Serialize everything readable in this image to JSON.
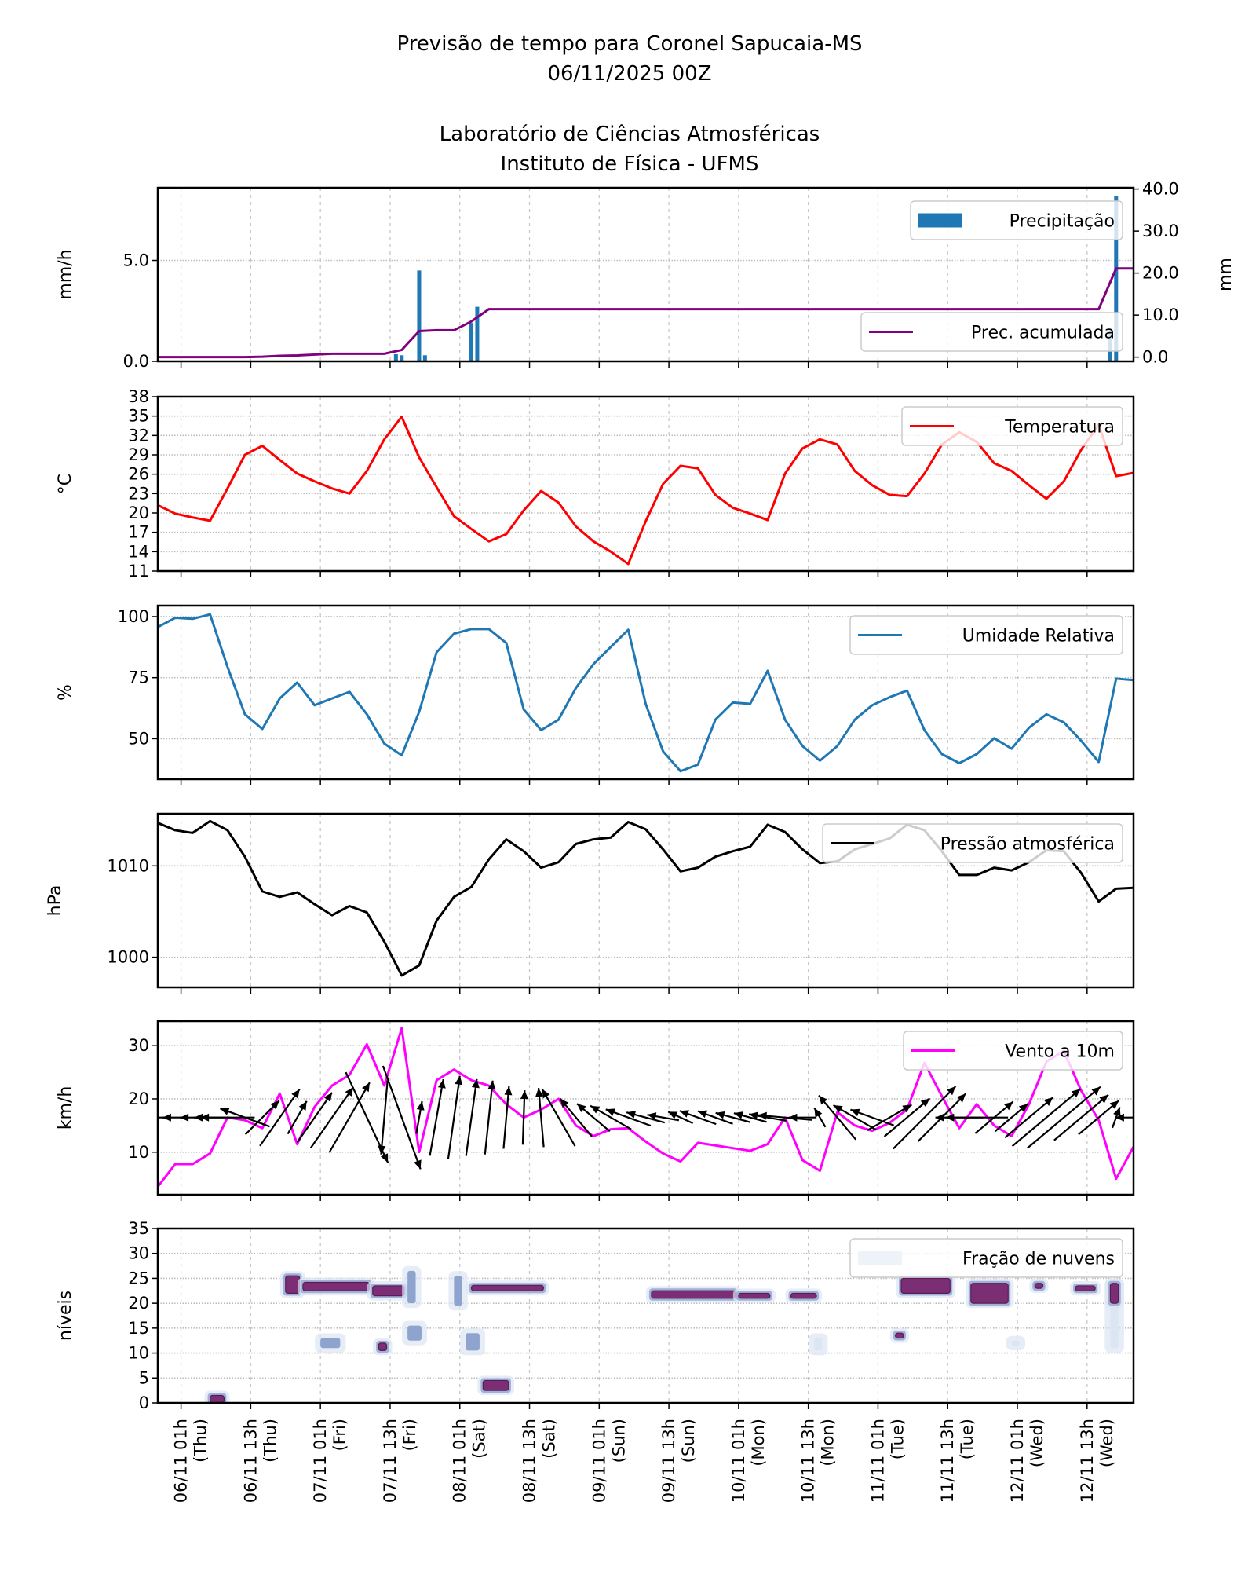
{
  "title": {
    "line1": "Previsão de tempo para Coronel Sapucaia-MS",
    "line2": "06/11/2025 00Z",
    "line3": "Laboratório de Ciências Atmosféricas",
    "line4": "Instituto de Física - UFMS"
  },
  "x_axis": {
    "range": [
      "05/11 21h",
      "12/11 21h"
    ],
    "ticks": [
      {
        "at": "06/11 01h",
        "line1": "06/11 01h",
        "line2": "(Thu)"
      },
      {
        "at": "06/11 13h",
        "line1": "06/11 13h",
        "line2": "(Thu)"
      },
      {
        "at": "07/11 01h",
        "line1": "07/11 01h",
        "line2": "(Fri)"
      },
      {
        "at": "07/11 13h",
        "line1": "07/11 13h",
        "line2": "(Fri)"
      },
      {
        "at": "08/11 01h",
        "line1": "08/11 01h",
        "line2": "(Sat)"
      },
      {
        "at": "08/11 13h",
        "line1": "08/11 13h",
        "line2": "(Sat)"
      },
      {
        "at": "09/11 01h",
        "line1": "09/11 01h",
        "line2": "(Sun)"
      },
      {
        "at": "09/11 13h",
        "line1": "09/11 13h",
        "line2": "(Sun)"
      },
      {
        "at": "10/11 01h",
        "line1": "10/11 01h",
        "line2": "(Mon)"
      },
      {
        "at": "10/11 13h",
        "line1": "10/11 13h",
        "line2": "(Mon)"
      },
      {
        "at": "11/11 01h",
        "line1": "11/11 01h",
        "line2": "(Tue)"
      },
      {
        "at": "11/11 13h",
        "line1": "11/11 13h",
        "line2": "(Tue)"
      },
      {
        "at": "12/11 01h",
        "line1": "12/11 01h",
        "line2": "(Wed)"
      },
      {
        "at": "12/11 13h",
        "line1": "12/11 13h",
        "line2": "(Wed)"
      }
    ]
  },
  "times": [
    "05/11 21h",
    "06/11 00h",
    "06/11 03h",
    "06/11 06h",
    "06/11 09h",
    "06/11 12h",
    "06/11 15h",
    "06/11 18h",
    "06/11 21h",
    "07/11 00h",
    "07/11 03h",
    "07/11 06h",
    "07/11 09h",
    "07/11 12h",
    "07/11 15h",
    "07/11 18h",
    "07/11 21h",
    "08/11 00h",
    "08/11 03h",
    "08/11 06h",
    "08/11 09h",
    "08/11 12h",
    "08/11 15h",
    "08/11 18h",
    "08/11 21h",
    "09/11 00h",
    "09/11 03h",
    "09/11 06h",
    "09/11 09h",
    "09/11 12h",
    "09/11 15h",
    "09/11 18h",
    "09/11 21h",
    "10/11 00h",
    "10/11 03h",
    "10/11 06h",
    "10/11 09h",
    "10/11 12h",
    "10/11 15h",
    "10/11 18h",
    "10/11 21h",
    "11/11 00h",
    "11/11 03h",
    "11/11 06h",
    "11/11 09h",
    "11/11 12h",
    "11/11 15h",
    "11/11 18h",
    "11/11 21h",
    "12/11 00h",
    "12/11 03h",
    "12/11 06h",
    "12/11 09h",
    "12/11 12h",
    "12/11 15h",
    "12/11 18h",
    "12/11 21h"
  ],
  "chart_data": [
    {
      "type": "bar",
      "ylabel": "mm/h",
      "ylabel_right": "mm",
      "ylim": [
        0,
        8.6
      ],
      "ylim_right": [
        -1,
        40.3
      ],
      "yticks": [
        "0.0",
        "5.0"
      ],
      "yticks_right": [
        "0.0",
        "10.0",
        "20.0",
        "30.0",
        "40.0"
      ],
      "grid": true,
      "legend_placement": "upper-right / lower-right",
      "series": [
        {
          "name": "Precipitação",
          "type": "bar",
          "color": "#1f77b4",
          "axis": "left",
          "x": [
            "07/11 14h",
            "07/11 15h",
            "07/11 18h",
            "07/11 19h",
            "08/11 03h",
            "08/11 04h",
            "12/11 17h",
            "12/11 18h"
          ],
          "values": [
            0.35,
            0.3,
            4.5,
            0.3,
            1.9,
            2.7,
            1.5,
            8.2
          ]
        },
        {
          "name": "Prec. acumulada",
          "type": "line",
          "color": "#800080",
          "axis": "right",
          "values": [
            0,
            0,
            0,
            0,
            0,
            0,
            0.1,
            0.3,
            0.4,
            0.6,
            0.8,
            0.8,
            0.8,
            0.8,
            1.7,
            6.2,
            6.4,
            6.4,
            8.5,
            11.4,
            11.4,
            11.4,
            11.4,
            11.4,
            11.4,
            11.4,
            11.4,
            11.4,
            11.4,
            11.4,
            11.4,
            11.4,
            11.4,
            11.4,
            11.4,
            11.4,
            11.4,
            11.4,
            11.4,
            11.4,
            11.4,
            11.4,
            11.4,
            11.4,
            11.4,
            11.4,
            11.4,
            11.4,
            11.4,
            11.4,
            11.4,
            11.4,
            11.4,
            11.4,
            11.4,
            21.1,
            21.1
          ]
        }
      ]
    },
    {
      "type": "line",
      "ylabel": "°C",
      "ylim": [
        11,
        38
      ],
      "yticks": [
        "11",
        "14",
        "17",
        "20",
        "23",
        "26",
        "29",
        "32",
        "35",
        "38"
      ],
      "grid": true,
      "legend_placement": "upper-right",
      "series": [
        {
          "name": "Temperatura",
          "color": "#ff0000",
          "values": [
            21.2,
            19.9,
            19.3,
            18.8,
            23.8,
            29.0,
            30.4,
            28.2,
            26.1,
            24.9,
            23.8,
            23.0,
            26.5,
            31.4,
            34.9,
            28.6,
            24.0,
            19.5,
            17.5,
            15.6,
            16.7,
            20.4,
            23.4,
            21.6,
            17.9,
            15.6,
            14.0,
            12.1,
            18.7,
            24.5,
            27.3,
            26.9,
            22.8,
            20.8,
            19.9,
            18.9,
            26.1,
            30.0,
            31.4,
            30.6,
            26.5,
            24.3,
            22.8,
            22.6,
            26.1,
            30.6,
            32.5,
            31.0,
            27.7,
            26.5,
            24.3,
            22.2,
            24.9,
            29.8,
            33.7,
            25.7,
            26.2
          ]
        }
      ]
    },
    {
      "type": "line",
      "ylabel": "%",
      "ylim": [
        33.4,
        104.5
      ],
      "yticks": [
        "50",
        "75",
        "100"
      ],
      "grid": true,
      "legend_placement": "upper-right",
      "series": [
        {
          "name": "Umidade Relativa",
          "color": "#1f77b4",
          "values": [
            95.7,
            99.5,
            99.1,
            100.9,
            79.4,
            60,
            54,
            66.5,
            73,
            63.7,
            66.5,
            69.2,
            60,
            48,
            43.2,
            61,
            85.4,
            93,
            94.9,
            94.9,
            89.2,
            62,
            53.5,
            57.8,
            70.8,
            80.5,
            87.6,
            94.6,
            64.3,
            44.8,
            36.7,
            39.4,
            57.8,
            64.8,
            64.3,
            77.8,
            57.8,
            47,
            41,
            47,
            57.8,
            63.7,
            67,
            69.7,
            53.5,
            43.7,
            40,
            43.7,
            50.2,
            45.9,
            54.5,
            60,
            56.7,
            49.1,
            40.5,
            74.6,
            74
          ]
        }
      ]
    },
    {
      "type": "line",
      "ylabel": "hPa",
      "ylim": [
        996.7,
        1015.7
      ],
      "yticks": [
        "1000",
        "1010"
      ],
      "grid": true,
      "legend_placement": "upper-right",
      "series": [
        {
          "name": "Pressão atmosférica",
          "color": "#000000",
          "values": [
            1014.7,
            1013.9,
            1013.6,
            1014.9,
            1013.9,
            1011.0,
            1007.2,
            1006.6,
            1007.1,
            1005.8,
            1004.6,
            1005.6,
            1004.9,
            1001.7,
            998.0,
            999.1,
            1004.0,
            1006.6,
            1007.7,
            1010.7,
            1012.9,
            1011.6,
            1009.8,
            1010.4,
            1012.4,
            1012.9,
            1013.1,
            1014.8,
            1014.0,
            1011.8,
            1009.4,
            1009.8,
            1011.0,
            1011.6,
            1012.1,
            1014.5,
            1013.7,
            1011.8,
            1010.3,
            1010.5,
            1011.8,
            1012.4,
            1013.0,
            1014.5,
            1013.9,
            1011.6,
            1009.0,
            1009.0,
            1009.8,
            1009.5,
            1010.4,
            1011.7,
            1011.6,
            1009.2,
            1006.1,
            1007.5,
            1007.6
          ]
        }
      ]
    },
    {
      "type": "line",
      "ylabel": "km/h",
      "ylim": [
        2,
        34.6
      ],
      "yticks": [
        "10",
        "20",
        "30"
      ],
      "grid": true,
      "legend_placement": "upper-right",
      "series": [
        {
          "name": "Vento a 10m",
          "color": "#ff00ff",
          "values": [
            3.5,
            7.75,
            7.75,
            9.75,
            16.5,
            16,
            14.5,
            21,
            11.5,
            18.5,
            22.5,
            24.5,
            30.25,
            22.5,
            33.3,
            10,
            23.5,
            25.5,
            23.5,
            22.5,
            19,
            16.5,
            18,
            20,
            15,
            13,
            14.3,
            14.5,
            12,
            9.75,
            8.25,
            11.75,
            11.25,
            10.75,
            10.25,
            11.5,
            16.5,
            8.5,
            6.5,
            17.5,
            15,
            14,
            15.5,
            18,
            26.75,
            20.5,
            14.5,
            19,
            15,
            13,
            19,
            27,
            29,
            21.5,
            16,
            5,
            11
          ]
        }
      ],
      "wind_vectors": {
        "color": "#000000",
        "direction_deg": [
          180,
          180,
          180,
          180,
          180,
          160,
          45,
          55,
          60,
          55,
          55,
          60,
          -65,
          -95,
          -70,
          80,
          80,
          82,
          82,
          84,
          85,
          88,
          95,
          120,
          130,
          140,
          150,
          160,
          165,
          170,
          155,
          160,
          160,
          165,
          165,
          170,
          175,
          180,
          120,
          130,
          150,
          160,
          30,
          40,
          45,
          45,
          180,
          180,
          40,
          40,
          40,
          40,
          40,
          40,
          40,
          70,
          180
        ]
      }
    },
    {
      "type": "heatmap",
      "ylabel": "níveis",
      "ylim": [
        0,
        35
      ],
      "yticks": [
        "0",
        "5",
        "10",
        "15",
        "20",
        "25",
        "30",
        "35"
      ],
      "grid": true,
      "legend_placement": "upper-right",
      "series": [
        {
          "name": "Fração de nuvens",
          "color": "#eef3fa",
          "colormap": [
            "#eef3fa",
            "#c6d3e8",
            "#8fa3cf",
            "#7b2e74"
          ],
          "regions": [
            {
              "from": "06/11 06h",
              "to": "06/11 08h",
              "levels": [
                0,
                1.5
              ],
              "intensity": "high"
            },
            {
              "from": "06/11 19h",
              "to": "06/11 21h",
              "levels": [
                22,
                25.5
              ],
              "intensity": "high"
            },
            {
              "from": "06/11 22h",
              "to": "07/11 09h",
              "levels": [
                22.5,
                24.2
              ],
              "intensity": "high"
            },
            {
              "from": "07/11 10h",
              "to": "07/11 15h",
              "levels": [
                21.5,
                23.5
              ],
              "intensity": "high"
            },
            {
              "from": "07/11 16h",
              "to": "07/11 17h",
              "levels": [
                20,
                26.5
              ],
              "intensity": "medium"
            },
            {
              "from": "08/11 00h",
              "to": "08/11 01h",
              "levels": [
                19.5,
                25.5
              ],
              "intensity": "medium"
            },
            {
              "from": "08/11 03h",
              "to": "08/11 15h",
              "levels": [
                22.5,
                23.6
              ],
              "intensity": "high"
            },
            {
              "from": "07/11 01h",
              "to": "07/11 04h",
              "levels": [
                11,
                13
              ],
              "intensity": "medium"
            },
            {
              "from": "07/11 11h",
              "to": "07/11 12h",
              "levels": [
                10.5,
                12
              ],
              "intensity": "high"
            },
            {
              "from": "07/11 16h",
              "to": "07/11 18h",
              "levels": [
                12.5,
                15.5
              ],
              "intensity": "medium"
            },
            {
              "from": "08/11 02h",
              "to": "08/11 04h",
              "levels": [
                10.5,
                14
              ],
              "intensity": "medium"
            },
            {
              "from": "08/11 05h",
              "to": "08/11 09h",
              "levels": [
                2.5,
                4.5
              ],
              "intensity": "high"
            },
            {
              "from": "09/11 10h",
              "to": "10/11 00h",
              "levels": [
                21,
                22.5
              ],
              "intensity": "high"
            },
            {
              "from": "10/11 01h",
              "to": "10/11 06h",
              "levels": [
                21,
                22
              ],
              "intensity": "high"
            },
            {
              "from": "10/11 10h",
              "to": "10/11 14h",
              "levels": [
                21,
                22
              ],
              "intensity": "high"
            },
            {
              "from": "10/11 14h",
              "to": "10/11 15h",
              "levels": [
                10.5,
                13
              ],
              "intensity": "low"
            },
            {
              "from": "11/11 05h",
              "to": "11/11 13h",
              "levels": [
                22,
                25
              ],
              "intensity": "high"
            },
            {
              "from": "11/11 17h",
              "to": "11/11 23h",
              "levels": [
                20,
                24
              ],
              "intensity": "high"
            },
            {
              "from": "11/11 04h",
              "to": "11/11 05h",
              "levels": [
                13,
                14
              ],
              "intensity": "high"
            },
            {
              "from": "12/11 04h",
              "to": "12/11 05h",
              "levels": [
                23,
                24
              ],
              "intensity": "high"
            },
            {
              "from": "12/11 11h",
              "to": "12/11 14h",
              "levels": [
                22.5,
                23.5
              ],
              "intensity": "high"
            },
            {
              "from": "12/11 17h",
              "to": "12/11 18h",
              "levels": [
                11,
                24
              ],
              "intensity": "low"
            },
            {
              "from": "12/11 17h",
              "to": "12/11 18h",
              "levels": [
                20,
                24
              ],
              "intensity": "high"
            },
            {
              "from": "12/11 00h",
              "to": "12/11 01h",
              "levels": [
                11.5,
                12.5
              ],
              "intensity": "low"
            }
          ]
        }
      ]
    }
  ]
}
